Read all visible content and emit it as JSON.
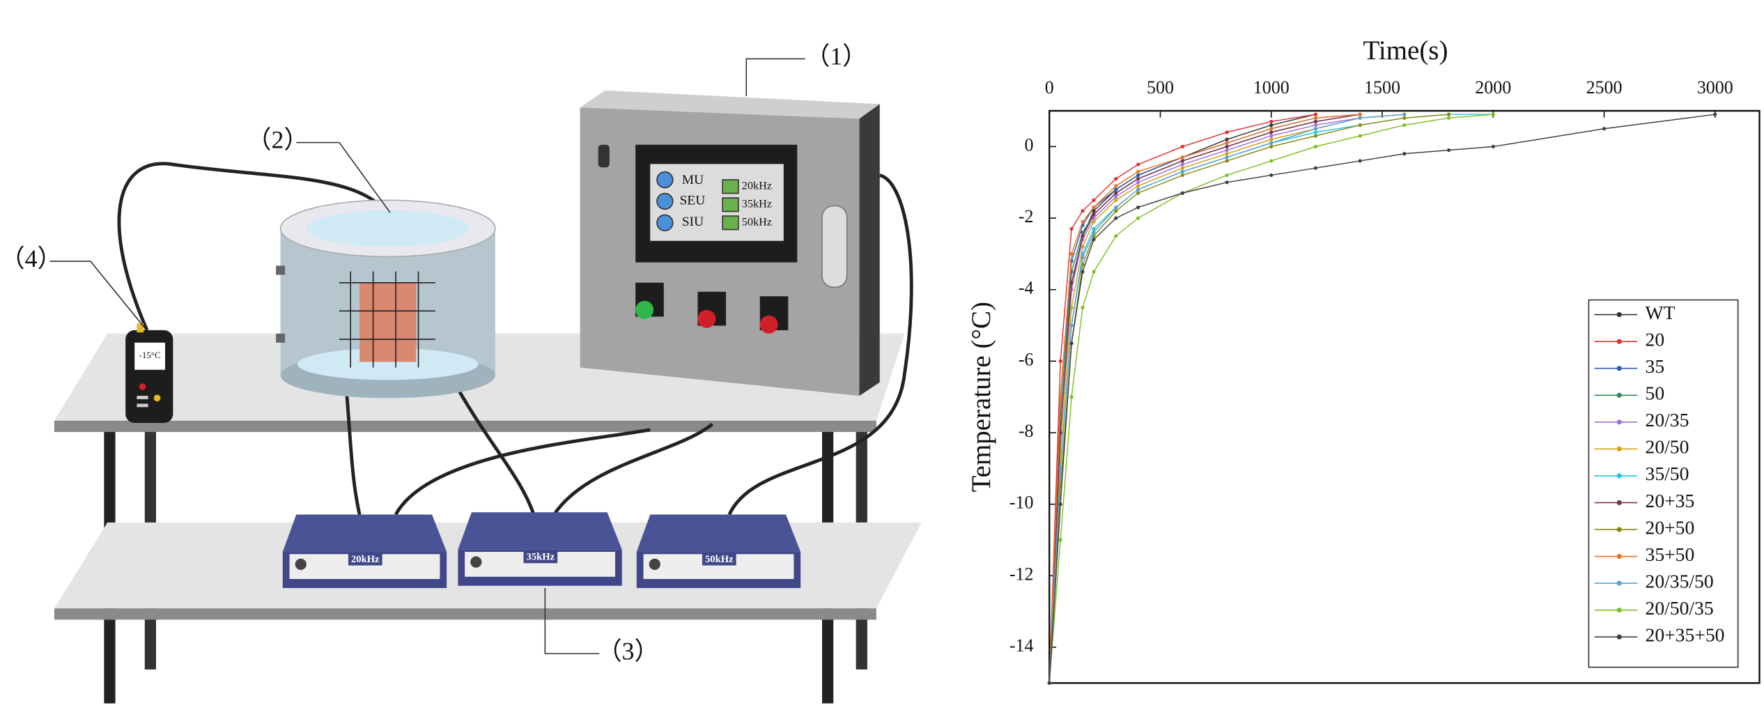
{
  "diagram": {
    "labels": [
      "（1）",
      "（2）",
      "（3）",
      "（4）"
    ],
    "screen": {
      "units": [
        "MU",
        "SEU",
        "SIU"
      ],
      "frequencies": [
        "20kHz",
        "35kHz",
        "50kHz"
      ]
    },
    "thermometer": "-15°C",
    "generators": [
      "20kHz",
      "35kHz",
      "50kHz"
    ]
  },
  "chart_data": {
    "type": "line",
    "x_label": "Time(s)",
    "y_label": "Temperature (°C)",
    "xlim": [
      0,
      3200
    ],
    "xticks": [
      0,
      500,
      1000,
      1500,
      2000,
      2500,
      3000
    ],
    "ylim": [
      -15,
      1
    ],
    "yticks": [
      -14,
      -12,
      -10,
      -8,
      -6,
      -4,
      -2,
      0
    ],
    "legend": "lower right",
    "x": [
      0,
      50,
      100,
      150,
      200,
      300,
      400,
      600,
      800,
      1000,
      1200,
      1400,
      1600,
      1800,
      2000,
      2500,
      3000
    ],
    "series": [
      {
        "name": "WT",
        "color": "#333333",
        "values": [
          -15,
          -8,
          -4,
          -2.5,
          -1.8,
          -1.2,
          -0.8,
          -0.3,
          0.2,
          0.6,
          0.9,
          null,
          null,
          null,
          null,
          null,
          null
        ]
      },
      {
        "name": "20",
        "color": "#e03030",
        "values": [
          -15,
          -6,
          -2.3,
          -1.8,
          -1.5,
          -0.9,
          -0.5,
          0,
          0.4,
          0.7,
          0.9,
          null,
          null,
          null,
          null,
          null,
          null
        ]
      },
      {
        "name": "35",
        "color": "#2a5db0",
        "values": [
          -15,
          -7,
          -3.2,
          -2.2,
          -1.7,
          -1.2,
          -0.8,
          -0.3,
          0.1,
          0.5,
          0.8,
          0.9,
          null,
          null,
          null,
          null,
          null
        ]
      },
      {
        "name": "50",
        "color": "#2e8b57",
        "values": [
          -15,
          -7.5,
          -3.5,
          -2.4,
          -1.9,
          -1.3,
          -0.9,
          -0.4,
          0,
          0.4,
          0.7,
          0.9,
          null,
          null,
          null,
          null,
          null
        ]
      },
      {
        "name": "20/35",
        "color": "#a070e0",
        "values": [
          -15,
          -8,
          -4,
          -2.6,
          -2,
          -1.4,
          -1,
          -0.5,
          -0.1,
          0.3,
          0.6,
          0.8,
          0.9,
          null,
          null,
          null,
          null
        ]
      },
      {
        "name": "20/50",
        "color": "#d4a017",
        "values": [
          -15,
          -8.5,
          -4.5,
          -2.8,
          -2.1,
          -1.5,
          -1.1,
          -0.6,
          -0.2,
          0.2,
          0.5,
          0.8,
          0.9,
          null,
          null,
          null,
          null
        ]
      },
      {
        "name": "35/50",
        "color": "#1ec8e0",
        "values": [
          -15,
          -9,
          -5,
          -3,
          -2.3,
          -1.7,
          -1.2,
          -0.7,
          -0.3,
          0.1,
          0.4,
          0.6,
          0.8,
          0.9,
          0.9,
          null,
          null
        ]
      },
      {
        "name": "20+35",
        "color": "#7a3050",
        "values": [
          -15,
          -8,
          -3.8,
          -2.5,
          -1.9,
          -1.3,
          -0.9,
          -0.4,
          0,
          0.4,
          0.7,
          0.9,
          null,
          null,
          null,
          null,
          null
        ]
      },
      {
        "name": "20+50",
        "color": "#8a8a10",
        "values": [
          -15,
          -9.5,
          -5.5,
          -3.3,
          -2.5,
          -1.8,
          -1.3,
          -0.8,
          -0.4,
          0,
          0.3,
          0.6,
          0.8,
          0.9,
          null,
          null,
          null
        ]
      },
      {
        "name": "35+50",
        "color": "#f07020",
        "values": [
          -15,
          -7,
          -3,
          -2.1,
          -1.7,
          -1.1,
          -0.7,
          -0.3,
          0.1,
          0.5,
          0.8,
          0.9,
          null,
          null,
          null,
          null,
          null
        ]
      },
      {
        "name": "20/35/50",
        "color": "#5ba0d0",
        "values": [
          -15,
          -9,
          -5,
          -3.1,
          -2.4,
          -1.7,
          -1.2,
          -0.7,
          -0.3,
          0.1,
          0.5,
          0.8,
          0.9,
          null,
          null,
          null,
          null
        ]
      },
      {
        "name": "20/50/35",
        "color": "#7cc020",
        "values": [
          -15,
          -11,
          -7,
          -4.5,
          -3.5,
          -2.5,
          -2,
          -1.3,
          -0.8,
          -0.4,
          0,
          0.3,
          0.6,
          0.8,
          0.9,
          null,
          null
        ]
      },
      {
        "name": "20+35+50",
        "color": "#404040",
        "values": [
          -15,
          -10,
          -5.5,
          -3.5,
          -2.6,
          -2,
          -1.7,
          -1.3,
          -1,
          -0.8,
          -0.6,
          -0.4,
          -0.2,
          -0.1,
          0,
          0.5,
          0.9
        ]
      }
    ]
  }
}
